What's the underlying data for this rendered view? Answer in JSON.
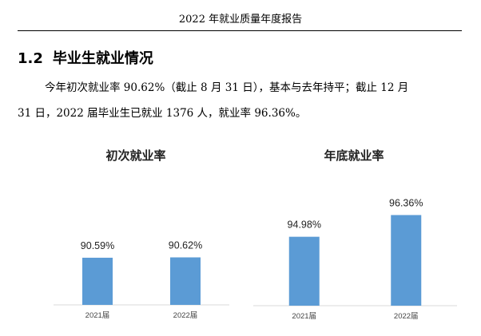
{
  "header": {
    "title": "2022 年就业质量年度报告"
  },
  "section": {
    "number": "1.2",
    "title": "毕业生就业情况"
  },
  "paragraph": {
    "line1": "今年初次就业率 90.62%（截止 8 月 31 日），基本与去年持平；截止 12 月",
    "line2": "31 日，2022 届毕业生已就业 1376 人，就业率 96.36%。"
  },
  "colors": {
    "bar": "#5b9bd5",
    "axis": "#d9d9d9",
    "text": "#222222"
  },
  "chart_data": [
    {
      "type": "bar",
      "title": "初次就业率",
      "categories": [
        "2021届",
        "2022届"
      ],
      "values": [
        90.59,
        90.62
      ],
      "value_labels": [
        "90.59%",
        "90.62%"
      ],
      "unit": "%",
      "grid": false,
      "legend": "none"
    },
    {
      "type": "bar",
      "title": "年底就业率",
      "categories": [
        "2021届",
        "2022届"
      ],
      "values": [
        94.98,
        96.36
      ],
      "value_labels": [
        "94.98%",
        "96.36%"
      ],
      "unit": "%",
      "grid": false,
      "legend": "none"
    }
  ]
}
